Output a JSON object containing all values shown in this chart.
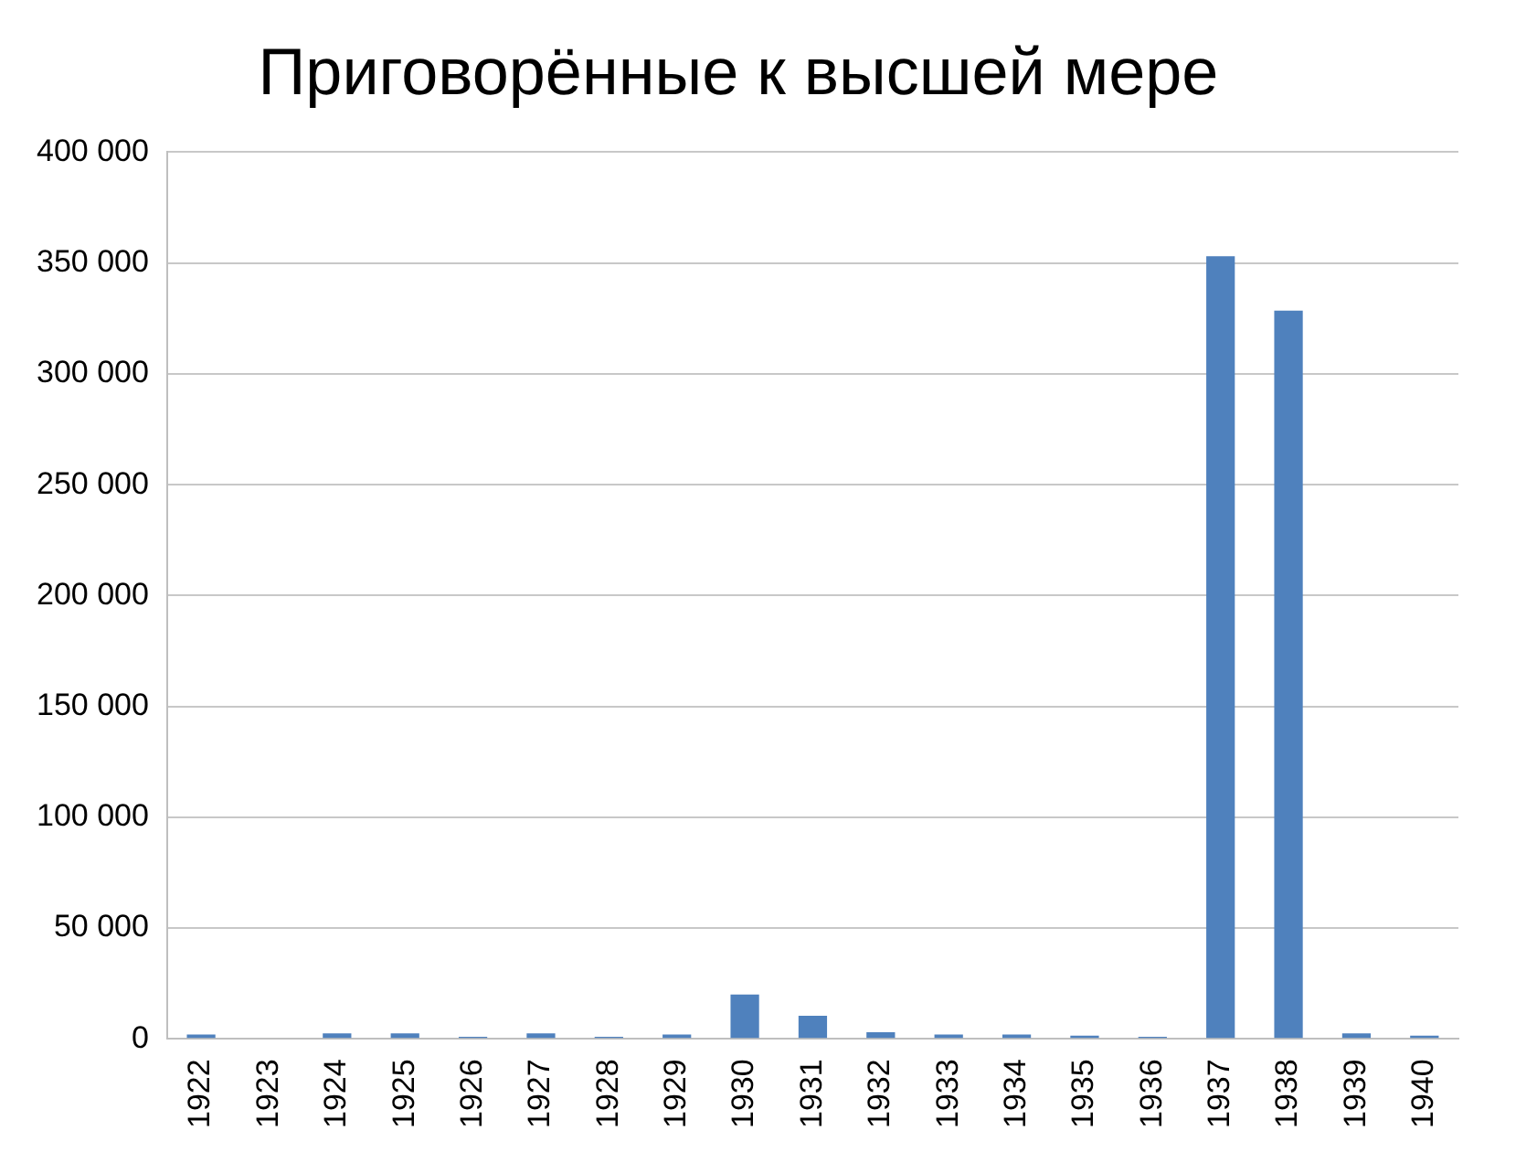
{
  "chart_data": {
    "type": "bar",
    "title": "Приговорённые к высшей мере",
    "categories": [
      "1922",
      "1923",
      "1924",
      "1925",
      "1926",
      "1927",
      "1928",
      "1929",
      "1930",
      "1931",
      "1932",
      "1933",
      "1934",
      "1935",
      "1936",
      "1937",
      "1938",
      "1939",
      "1940"
    ],
    "values": [
      2000,
      500,
      2500,
      2500,
      1000,
      2500,
      1000,
      2000,
      20000,
      10500,
      3000,
      2000,
      2000,
      1500,
      1000,
      353000,
      328500,
      2500,
      1500
    ],
    "color": "#4f81bd",
    "ylim": [
      0,
      400000
    ],
    "yticks": [
      {
        "value": 0,
        "label": "0"
      },
      {
        "value": 50000,
        "label": "50 000"
      },
      {
        "value": 100000,
        "label": "100 000"
      },
      {
        "value": 150000,
        "label": "150 000"
      },
      {
        "value": 200000,
        "label": "200 000"
      },
      {
        "value": 250000,
        "label": "250 000"
      },
      {
        "value": 300000,
        "label": "300 000"
      },
      {
        "value": 350000,
        "label": "350 000"
      },
      {
        "value": 400000,
        "label": "400 000"
      }
    ],
    "grid": "y",
    "legend": false
  }
}
